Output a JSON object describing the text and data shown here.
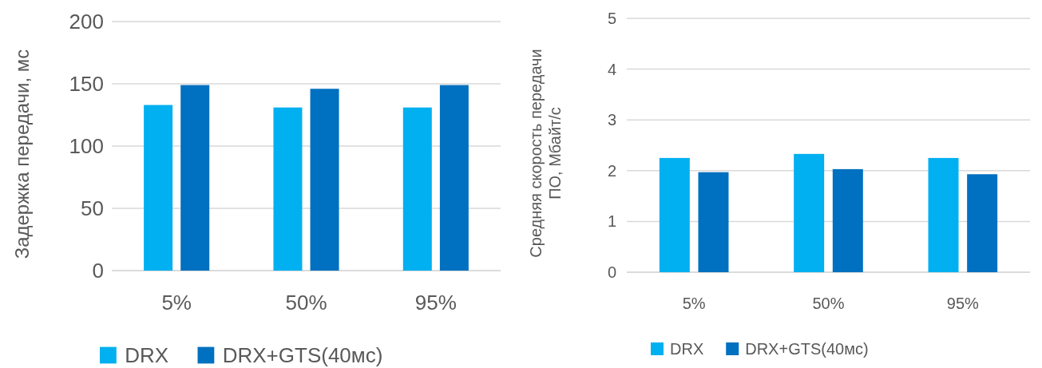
{
  "chart_data": [
    {
      "type": "bar",
      "ylabel": "Задержка передачи, мс",
      "categories": [
        "5%",
        "50%",
        "95%"
      ],
      "series": [
        {
          "name": "DRX",
          "color": "#00b0f0",
          "values": [
            133,
            131,
            131
          ]
        },
        {
          "name": "DRX+GTS(40мс)",
          "color": "#0070c0",
          "values": [
            149,
            146,
            149
          ]
        }
      ],
      "ylim": [
        0,
        200
      ],
      "yticks": [
        0,
        50,
        100,
        150,
        200
      ],
      "grid": "y",
      "legend": "bottom"
    },
    {
      "type": "bar",
      "ylabel": "Средняя скорость передачи\nПО, Мбайт/с",
      "categories": [
        "5%",
        "50%",
        "95%"
      ],
      "series": [
        {
          "name": "DRX",
          "color": "#00b0f0",
          "values": [
            2.25,
            2.33,
            2.25
          ]
        },
        {
          "name": "DRX+GTS(40мс)",
          "color": "#0070c0",
          "values": [
            1.97,
            2.03,
            1.93
          ]
        }
      ],
      "ylim": [
        0,
        5
      ],
      "yticks": [
        0,
        1,
        2,
        3,
        4,
        5
      ],
      "grid": "y",
      "legend": "bottom"
    }
  ]
}
